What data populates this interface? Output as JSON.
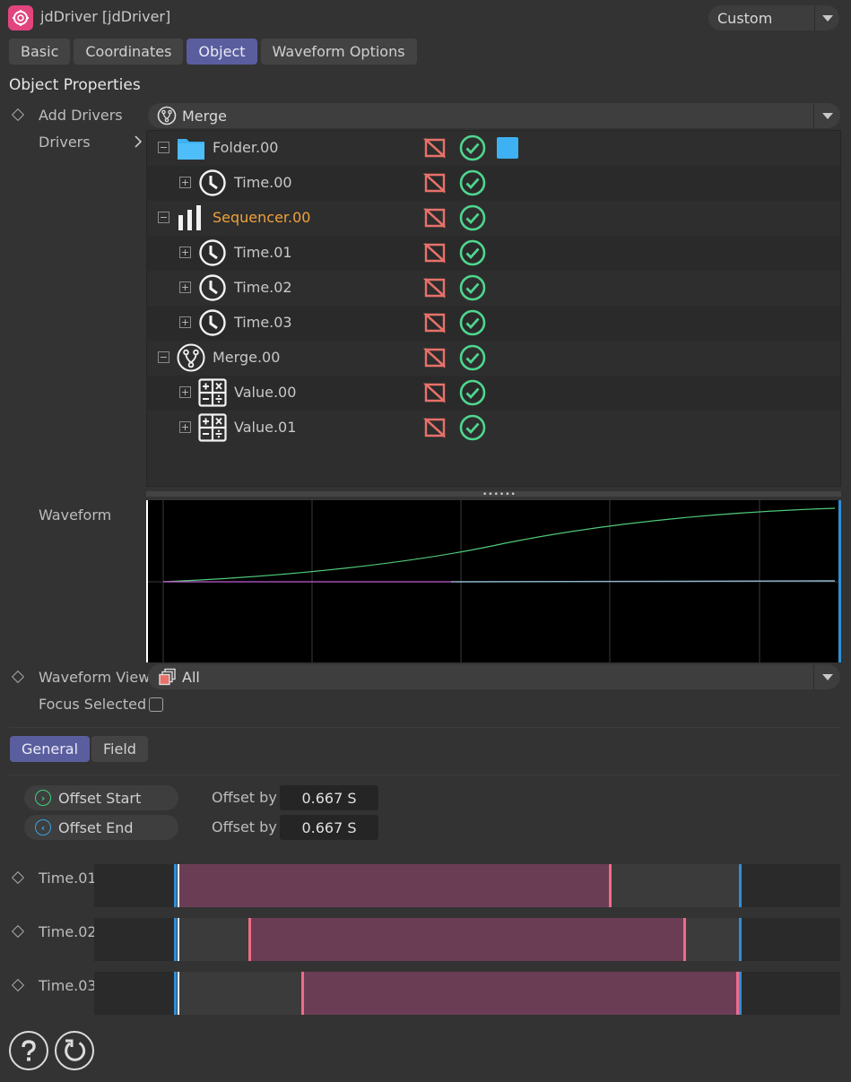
{
  "window": {
    "title": "jdDriver [jdDriver]",
    "layout_preset": "Custom"
  },
  "tabs": [
    {
      "label": "Basic",
      "active": false
    },
    {
      "label": "Coordinates",
      "active": false
    },
    {
      "label": "Object",
      "active": true
    },
    {
      "label": "Waveform Options",
      "active": false
    }
  ],
  "section_title": "Object Properties",
  "add_drivers": {
    "label": "Add Drivers",
    "value": "Merge",
    "icon": "merge-icon"
  },
  "drivers": {
    "label": "Drivers",
    "items": [
      {
        "label": "Folder.00",
        "icon": "folder-icon",
        "expander": "−",
        "level": 0,
        "color": "#3eb1f2",
        "enabled": true
      },
      {
        "label": "Time.00",
        "icon": "clock-icon",
        "expander": "+",
        "level": 1,
        "enabled": true
      },
      {
        "label": "Sequencer.00",
        "icon": "sequencer-icon",
        "expander": "−",
        "level": 0,
        "highlight": true,
        "enabled": true
      },
      {
        "label": "Time.01",
        "icon": "clock-icon",
        "expander": "+",
        "level": 1,
        "enabled": true
      },
      {
        "label": "Time.02",
        "icon": "clock-icon",
        "expander": "+",
        "level": 1,
        "enabled": true
      },
      {
        "label": "Time.03",
        "icon": "clock-icon",
        "expander": "+",
        "level": 1,
        "enabled": true
      },
      {
        "label": "Merge.00",
        "icon": "merge-icon",
        "expander": "−",
        "level": 0,
        "enabled": true
      },
      {
        "label": "Value.00",
        "icon": "calculator-icon",
        "expander": "+",
        "level": 1,
        "enabled": true
      },
      {
        "label": "Value.01",
        "icon": "calculator-icon",
        "expander": "+",
        "level": 1,
        "enabled": true
      }
    ]
  },
  "waveform": {
    "label": "Waveform"
  },
  "waveform_view": {
    "label": "Waveform View",
    "value": "All",
    "icon": "layers-icon"
  },
  "focus_selected": {
    "label": "Focus Selected",
    "checked": false
  },
  "sub_tabs": [
    {
      "label": "General",
      "active": true
    },
    {
      "label": "Field",
      "active": false
    }
  ],
  "offsets": [
    {
      "button": "Offset Start",
      "icon": "chevron-right-circle-icon",
      "accent": "#3fcf7c",
      "by_label": "Offset by",
      "value": "0.667 S"
    },
    {
      "button": "Offset End",
      "icon": "chevron-left-circle-icon",
      "accent": "#3aa3e0",
      "by_label": "Offset by",
      "value": "0.667 S"
    }
  ],
  "timeline_tracks": [
    {
      "label": "Time.01"
    },
    {
      "label": "Time.02"
    },
    {
      "label": "Time.03"
    }
  ],
  "footer": {
    "help_icon": "help-icon",
    "reset_icon": "reset-icon"
  },
  "colors": {
    "accent_tab": "#5a5e9e",
    "orange": "#f0a23a",
    "check_green": "#4fd68f",
    "disable_red": "#e8716a",
    "bar": "#6b3d55"
  }
}
